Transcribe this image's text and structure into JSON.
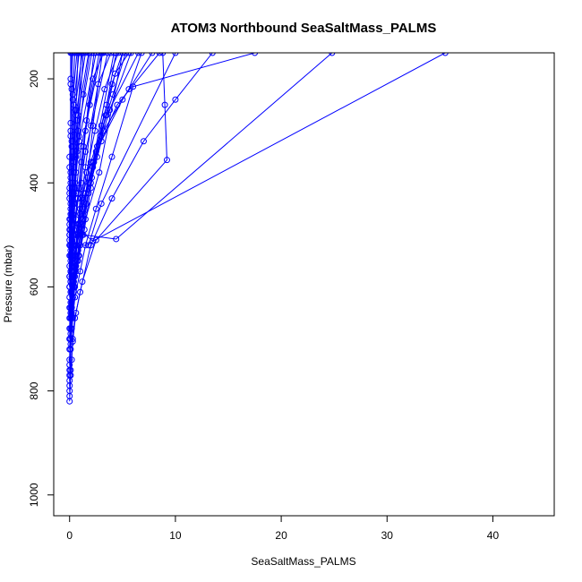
{
  "chart_data": {
    "type": "scatter",
    "title": "ATOM3 Northbound SeaSaltMass_PALMS",
    "xlabel": "SeaSaltMass_PALMS",
    "ylabel": "Pressure (mbar)",
    "xlim": [
      -1.5,
      45.8
    ],
    "ylim": [
      1040,
      150
    ],
    "y_reversed": true,
    "x_ticks": [
      0,
      10,
      20,
      30,
      40
    ],
    "y_ticks": [
      200,
      400,
      600,
      800,
      1000
    ],
    "grid": false,
    "legend": "none",
    "series_color": "#0000ff",
    "marker": "open-circle",
    "connected": true,
    "profiles": [
      [
        [
          0.0,
          820
        ],
        [
          0.1,
          770
        ],
        [
          0.2,
          740
        ],
        [
          0.3,
          700
        ],
        [
          0.5,
          660
        ],
        [
          1.0,
          610
        ],
        [
          2.0,
          520
        ],
        [
          4.0,
          430
        ],
        [
          7.0,
          320
        ],
        [
          10.0,
          240
        ],
        [
          13.5,
          150
        ]
      ],
      [
        [
          0.0,
          810
        ],
        [
          0.1,
          760
        ],
        [
          0.3,
          705
        ],
        [
          0.6,
          650
        ],
        [
          1.2,
          590
        ],
        [
          2.5,
          510
        ],
        [
          9.2,
          356
        ],
        [
          9.0,
          250
        ],
        [
          8.8,
          150
        ]
      ],
      [
        [
          0.0,
          800
        ],
        [
          0.1,
          720
        ],
        [
          0.3,
          660
        ],
        [
          0.5,
          620
        ],
        [
          1.0,
          570
        ],
        [
          1.5,
          520
        ],
        [
          2.5,
          450
        ],
        [
          4.0,
          350
        ],
        [
          6.0,
          215
        ],
        [
          17.5,
          150
        ]
      ],
      [
        [
          0.0,
          790
        ],
        [
          0.1,
          710
        ],
        [
          0.2,
          650
        ],
        [
          0.4,
          600
        ],
        [
          0.7,
          550
        ],
        [
          1.3,
          500
        ],
        [
          4.4,
          508
        ],
        [
          24.8,
          150
        ]
      ],
      [
        [
          0.0,
          780
        ],
        [
          0.1,
          700
        ],
        [
          0.2,
          640
        ],
        [
          0.3,
          590
        ],
        [
          0.5,
          540
        ],
        [
          0.9,
          490
        ],
        [
          2.2,
          512
        ],
        [
          35.5,
          150
        ]
      ],
      [
        [
          0.0,
          770
        ],
        [
          0.1,
          690
        ],
        [
          0.3,
          620
        ],
        [
          0.6,
          560
        ],
        [
          1.0,
          520
        ],
        [
          1.8,
          520
        ],
        [
          3.0,
          440
        ],
        [
          10.0,
          150
        ]
      ],
      [
        [
          0.0,
          760
        ],
        [
          0.2,
          680
        ],
        [
          0.4,
          610
        ],
        [
          0.8,
          540
        ],
        [
          1.5,
          470
        ],
        [
          2.8,
          380
        ],
        [
          5.0,
          150
        ]
      ],
      [
        [
          0.0,
          750
        ],
        [
          0.1,
          660
        ],
        [
          0.3,
          590
        ],
        [
          0.6,
          520
        ],
        [
          1.0,
          460
        ],
        [
          2.2,
          360
        ],
        [
          4.2,
          150
        ]
      ],
      [
        [
          0.0,
          740
        ],
        [
          0.1,
          650
        ],
        [
          0.2,
          580
        ],
        [
          0.4,
          500
        ],
        [
          0.8,
          430
        ],
        [
          1.5,
          340
        ],
        [
          3.6,
          150
        ]
      ],
      [
        [
          0.0,
          720
        ],
        [
          0.1,
          630
        ],
        [
          0.2,
          560
        ],
        [
          0.3,
          480
        ],
        [
          0.6,
          420
        ],
        [
          1.1,
          330
        ],
        [
          3.0,
          150
        ]
      ],
      [
        [
          0.0,
          700
        ],
        [
          0.1,
          610
        ],
        [
          0.2,
          540
        ],
        [
          0.3,
          470
        ],
        [
          0.5,
          410
        ],
        [
          0.9,
          320
        ],
        [
          2.5,
          150
        ]
      ],
      [
        [
          0.0,
          680
        ],
        [
          0.1,
          590
        ],
        [
          0.2,
          520
        ],
        [
          0.3,
          460
        ],
        [
          0.5,
          400
        ],
        [
          0.8,
          300
        ],
        [
          2.1,
          150
        ]
      ],
      [
        [
          0.0,
          660
        ],
        [
          0.1,
          570
        ],
        [
          0.2,
          500
        ],
        [
          0.3,
          440
        ],
        [
          0.4,
          380
        ],
        [
          0.7,
          280
        ],
        [
          1.8,
          150
        ]
      ],
      [
        [
          0.0,
          640
        ],
        [
          0.1,
          550
        ],
        [
          0.1,
          490
        ],
        [
          0.2,
          430
        ],
        [
          0.4,
          360
        ],
        [
          0.6,
          270
        ],
        [
          1.5,
          150
        ]
      ],
      [
        [
          0.0,
          620
        ],
        [
          0.1,
          530
        ],
        [
          0.1,
          470
        ],
        [
          0.2,
          420
        ],
        [
          0.3,
          350
        ],
        [
          0.5,
          260
        ],
        [
          1.2,
          150
        ]
      ],
      [
        [
          0.0,
          600
        ],
        [
          0.0,
          520
        ],
        [
          0.1,
          460
        ],
        [
          0.2,
          410
        ],
        [
          0.3,
          340
        ],
        [
          0.4,
          250
        ],
        [
          0.9,
          150
        ]
      ],
      [
        [
          0.0,
          580
        ],
        [
          0.0,
          510
        ],
        [
          0.1,
          450
        ],
        [
          0.1,
          400
        ],
        [
          0.2,
          330
        ],
        [
          0.3,
          240
        ],
        [
          0.7,
          150
        ]
      ],
      [
        [
          0.0,
          560
        ],
        [
          0.0,
          500
        ],
        [
          0.1,
          440
        ],
        [
          0.1,
          390
        ],
        [
          0.2,
          320
        ],
        [
          0.3,
          230
        ],
        [
          0.5,
          150
        ]
      ],
      [
        [
          0.0,
          540
        ],
        [
          0.0,
          490
        ],
        [
          0.0,
          430
        ],
        [
          0.1,
          380
        ],
        [
          0.1,
          310
        ],
        [
          0.2,
          220
        ],
        [
          0.3,
          150
        ]
      ],
      [
        [
          0.0,
          520
        ],
        [
          0.0,
          480
        ],
        [
          0.0,
          420
        ],
        [
          0.0,
          370
        ],
        [
          0.1,
          300
        ],
        [
          0.1,
          210
        ],
        [
          0.2,
          150
        ]
      ],
      [
        [
          0.0,
          500
        ],
        [
          0.0,
          470
        ],
        [
          0.0,
          410
        ],
        [
          0.0,
          350
        ],
        [
          0.1,
          285
        ],
        [
          0.1,
          200
        ],
        [
          0.1,
          150
        ]
      ],
      [
        [
          0.3,
          600
        ],
        [
          0.6,
          520
        ],
        [
          0.9,
          480
        ],
        [
          1.3,
          420
        ],
        [
          2.0,
          360
        ],
        [
          3.5,
          270
        ],
        [
          6.5,
          150
        ]
      ],
      [
        [
          0.2,
          610
        ],
        [
          0.5,
          540
        ],
        [
          1.2,
          470
        ],
        [
          2.0,
          400
        ],
        [
          3.0,
          320
        ],
        [
          5.0,
          240
        ],
        [
          7.8,
          150
        ]
      ],
      [
        [
          0.1,
          650
        ],
        [
          0.4,
          580
        ],
        [
          0.8,
          500
        ],
        [
          1.5,
          420
        ],
        [
          2.5,
          340
        ],
        [
          4.5,
          250
        ],
        [
          8.5,
          150
        ]
      ],
      [
        [
          0.2,
          630
        ],
        [
          0.6,
          560
        ],
        [
          1.1,
          480
        ],
        [
          1.8,
          400
        ],
        [
          3.2,
          300
        ],
        [
          5.6,
          220
        ],
        [
          6.8,
          150
        ]
      ],
      [
        [
          0.1,
          660
        ],
        [
          0.3,
          600
        ],
        [
          0.7,
          520
        ],
        [
          1.2,
          450
        ],
        [
          2.3,
          360
        ],
        [
          3.8,
          260
        ],
        [
          5.8,
          150
        ]
      ],
      [
        [
          0.4,
          590
        ],
        [
          0.8,
          530
        ],
        [
          1.4,
          460
        ],
        [
          2.1,
          390
        ],
        [
          2.9,
          310
        ],
        [
          4.1,
          230
        ],
        [
          5.3,
          150
        ]
      ],
      [
        [
          0.2,
          570
        ],
        [
          0.5,
          510
        ],
        [
          1.0,
          450
        ],
        [
          1.6,
          380
        ],
        [
          2.4,
          300
        ],
        [
          3.3,
          220
        ],
        [
          4.6,
          150
        ]
      ],
      [
        [
          0.3,
          560
        ],
        [
          0.7,
          500
        ],
        [
          1.1,
          430
        ],
        [
          1.5,
          370
        ],
        [
          2.0,
          290
        ],
        [
          2.7,
          210
        ],
        [
          3.9,
          150
        ]
      ],
      [
        [
          0.1,
          590
        ],
        [
          0.3,
          530
        ],
        [
          0.6,
          470
        ],
        [
          0.9,
          410
        ],
        [
          1.3,
          330
        ],
        [
          1.9,
          250
        ],
        [
          2.8,
          150
        ]
      ],
      [
        [
          0.2,
          540
        ],
        [
          0.4,
          490
        ],
        [
          0.8,
          420
        ],
        [
          1.1,
          360
        ],
        [
          1.6,
          280
        ],
        [
          2.2,
          200
        ],
        [
          3.2,
          150
        ]
      ],
      [
        [
          0.1,
          570
        ],
        [
          0.2,
          510
        ],
        [
          0.4,
          440
        ],
        [
          0.6,
          380
        ],
        [
          0.9,
          310
        ],
        [
          1.3,
          230
        ],
        [
          1.9,
          150
        ]
      ],
      [
        [
          0.0,
          600
        ],
        [
          0.1,
          540
        ],
        [
          0.2,
          480
        ],
        [
          0.4,
          420
        ],
        [
          0.6,
          350
        ],
        [
          0.8,
          270
        ],
        [
          1.1,
          150
        ]
      ],
      [
        [
          0.0,
          580
        ],
        [
          0.1,
          520
        ],
        [
          0.2,
          460
        ],
        [
          0.3,
          400
        ],
        [
          0.4,
          330
        ],
        [
          0.6,
          260
        ],
        [
          0.8,
          150
        ]
      ],
      [
        [
          0.5,
          580
        ],
        [
          1.0,
          500
        ],
        [
          1.6,
          440
        ],
        [
          2.2,
          370
        ],
        [
          3.0,
          290
        ],
        [
          4.0,
          210
        ],
        [
          5.0,
          150
        ]
      ],
      [
        [
          0.3,
          620
        ],
        [
          0.8,
          550
        ],
        [
          1.4,
          490
        ],
        [
          2.0,
          410
        ],
        [
          2.6,
          330
        ],
        [
          3.5,
          250
        ],
        [
          4.4,
          150
        ]
      ],
      [
        [
          0.6,
          570
        ],
        [
          1.2,
          500
        ],
        [
          1.8,
          420
        ],
        [
          2.6,
          350
        ],
        [
          3.4,
          270
        ],
        [
          4.3,
          190
        ],
        [
          5.6,
          150
        ]
      ],
      [
        [
          0.2,
          660
        ],
        [
          0.5,
          600
        ],
        [
          0.9,
          540
        ],
        [
          1.3,
          470
        ],
        [
          1.7,
          390
        ],
        [
          2.2,
          290
        ],
        [
          3.1,
          150
        ]
      ],
      [
        [
          0.1,
          680
        ],
        [
          0.3,
          620
        ],
        [
          0.5,
          560
        ],
        [
          0.8,
          480
        ],
        [
          1.1,
          400
        ],
        [
          1.5,
          300
        ],
        [
          2.3,
          150
        ]
      ],
      [
        [
          0.0,
          700
        ],
        [
          0.1,
          640
        ],
        [
          0.2,
          580
        ],
        [
          0.3,
          520
        ],
        [
          0.5,
          440
        ],
        [
          0.7,
          340
        ],
        [
          1.3,
          150
        ]
      ]
    ]
  }
}
